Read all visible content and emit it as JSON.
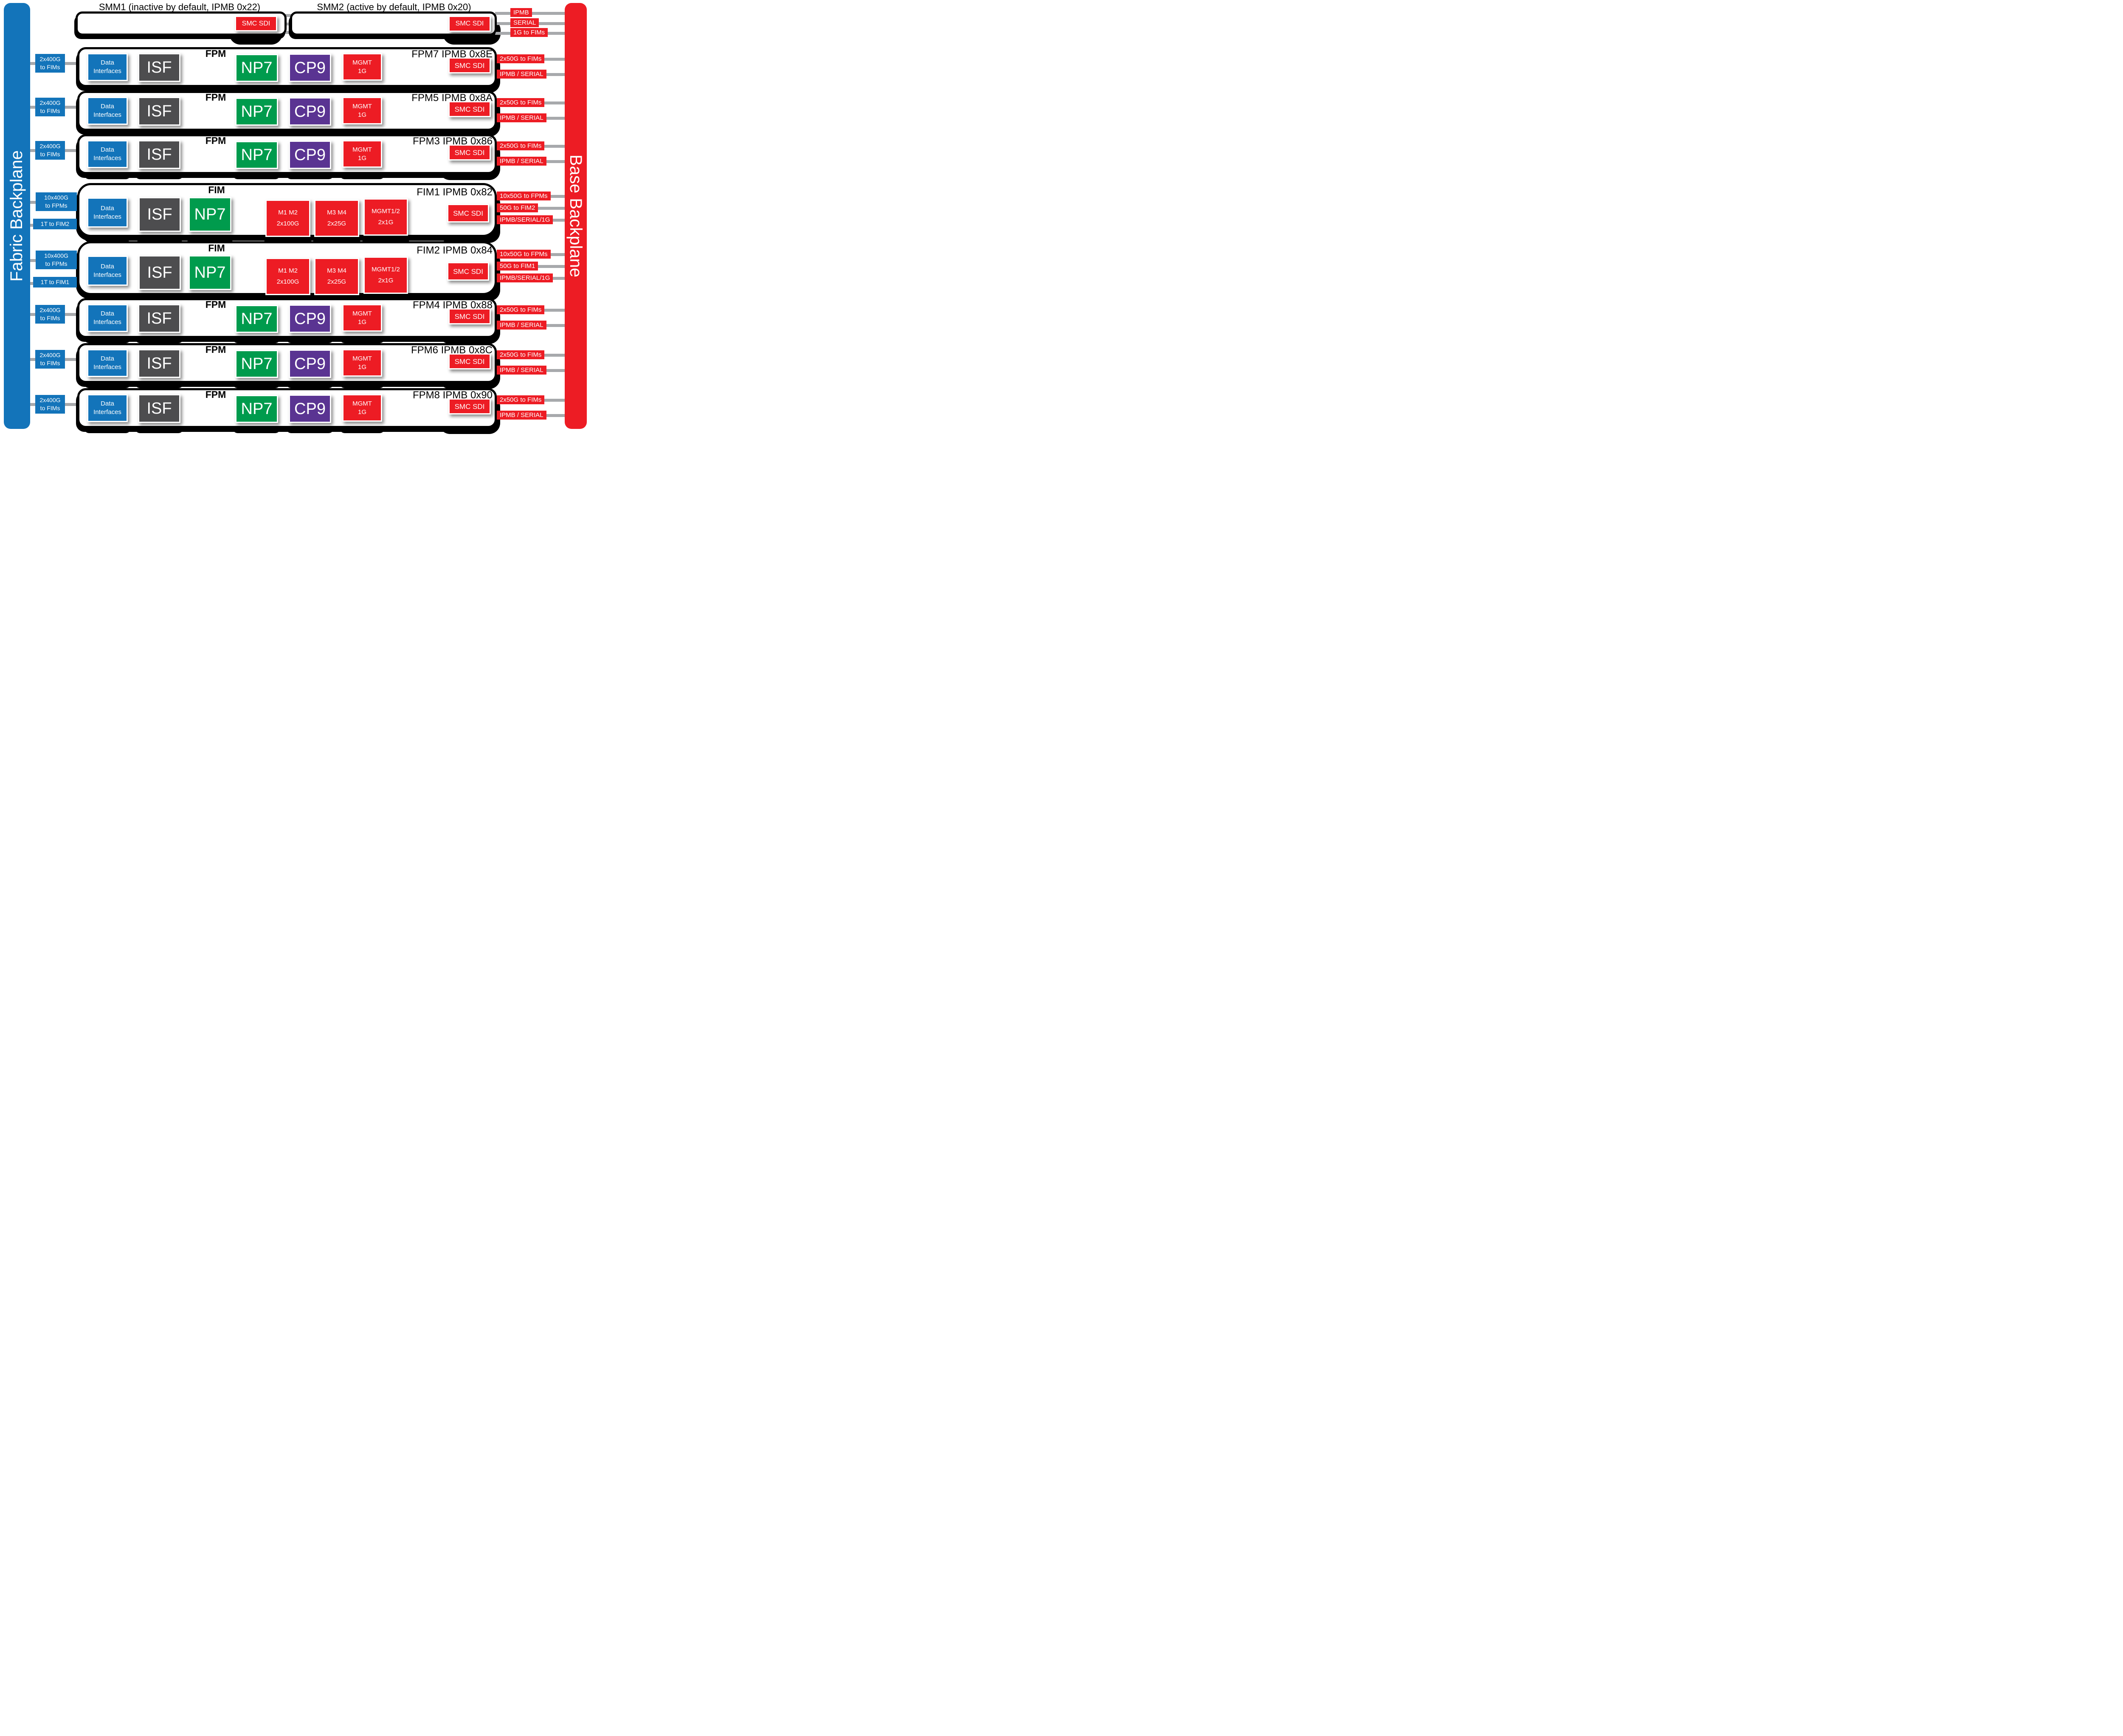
{
  "fabric_backplane": {
    "label": "Fabric Backplane",
    "color": "#1374BA"
  },
  "base_backplane": {
    "label": "Base Backplane",
    "color": "#ED1C24"
  },
  "smm": {
    "smm1": {
      "title": "SMM1 (inactive by default, IPMB 0x22)",
      "chip": "SMC SDI"
    },
    "smm2": {
      "title": "SMM2 (active by default, IPMB 0x20)",
      "chip": "SMC SDI"
    },
    "bus_labels": [
      "IPMB",
      "SERIAL",
      "1G to FIMs"
    ]
  },
  "chip_labels": {
    "data_interfaces": [
      "Data",
      "Interfaces"
    ],
    "isf": "ISF",
    "np7": "NP7",
    "cp9": "CP9",
    "mgmt": [
      "MGMT",
      "1G"
    ],
    "smc": "SMC SDI",
    "m12": [
      "M1 M2",
      "2x100G"
    ],
    "m34": [
      "M3  M4",
      "2x25G"
    ],
    "mgmt12": [
      "MGMT1/2",
      "2x1G"
    ]
  },
  "rows": [
    {
      "kind": "fpm",
      "module_label": "FPM",
      "title": "FPM7 IPMB 0x8E",
      "left_labels": [
        [
          "2x400G",
          "to FIMs"
        ]
      ],
      "right_labels": [
        "2x50G to FIMs",
        "IPMB / SERIAL"
      ]
    },
    {
      "kind": "fpm",
      "module_label": "FPM",
      "title": "FPM5 IPMB 0x8A",
      "left_labels": [
        [
          "2x400G",
          "to FIMs"
        ]
      ],
      "right_labels": [
        "2x50G to FIMs",
        "IPMB / SERIAL"
      ]
    },
    {
      "kind": "fpm",
      "module_label": "FPM",
      "title": "FPM3 IPMB 0x86",
      "left_labels": [
        [
          "2x400G",
          "to FIMs"
        ]
      ],
      "right_labels": [
        "2x50G to FIMs",
        "IPMB / SERIAL"
      ]
    },
    {
      "kind": "fim",
      "module_label": "FIM",
      "title": "FIM1 IPMB 0x82",
      "left_labels": [
        [
          "10x400G",
          "to FPMs"
        ],
        [
          "1T to FIM2"
        ]
      ],
      "right_labels": [
        "10x50G to FPMs",
        "50G to FIM2",
        "IPMB/SERIAL/1G"
      ]
    },
    {
      "kind": "fim",
      "module_label": "FIM",
      "title": "FIM2 IPMB 0x84",
      "left_labels": [
        [
          "10x400G",
          "to FPMs"
        ],
        [
          "1T to FIM1"
        ]
      ],
      "right_labels": [
        "10x50G to FPMs",
        "50G to FIM1",
        "IPMB/SERIAL/1G"
      ]
    },
    {
      "kind": "fpm",
      "module_label": "FPM",
      "title": "FPM4 IPMB 0x88",
      "left_labels": [
        [
          "2x400G",
          "to FIMs"
        ]
      ],
      "right_labels": [
        "2x50G to FIMs",
        "IPMB / SERIAL"
      ]
    },
    {
      "kind": "fpm",
      "module_label": "FPM",
      "title": "FPM6 IPMB 0x8C",
      "left_labels": [
        [
          "2x400G",
          "to FIMs"
        ]
      ],
      "right_labels": [
        "2x50G to FIMs",
        "IPMB / SERIAL"
      ]
    },
    {
      "kind": "fpm",
      "module_label": "FPM",
      "title": "FPM8 IPMB 0x90",
      "left_labels": [
        [
          "2x400G",
          "to FIMs"
        ]
      ],
      "right_labels": [
        "2x50G to FIMs",
        "IPMB / SERIAL"
      ]
    }
  ]
}
